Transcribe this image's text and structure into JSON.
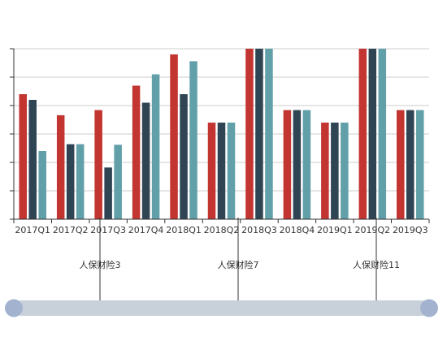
{
  "chart_data": {
    "type": "bar",
    "categories": [
      "2017Q1",
      "2017Q2",
      "2017Q3",
      "2017Q4",
      "2018Q1",
      "2018Q2",
      "2018Q3",
      "2018Q4",
      "2019Q1",
      "2019Q2",
      "2019Q3"
    ],
    "series": [
      {
        "color": "#c23531",
        "values": [
          22,
          18.3,
          19.2,
          23.5,
          29,
          17,
          30,
          19.2,
          17,
          30,
          19.2
        ]
      },
      {
        "color": "#2f4554",
        "values": [
          21,
          13.2,
          9.1,
          20.5,
          22,
          17,
          30,
          19.2,
          17,
          30,
          19.2
        ]
      },
      {
        "color": "#61a0a8",
        "values": [
          12,
          13.2,
          13.1,
          25.5,
          27.8,
          17,
          30,
          19.2,
          17,
          30,
          19.2
        ]
      }
    ],
    "ylim": [
      0,
      30
    ],
    "y_ticks": [
      0,
      5,
      10,
      15,
      20,
      25,
      30
    ],
    "grid": true,
    "timeline": {
      "labels": [
        "人保财险3",
        "人保财险7",
        "人保财险11"
      ],
      "slider_color": "#c8d0da",
      "handle_color": "#a3b3cf"
    }
  }
}
